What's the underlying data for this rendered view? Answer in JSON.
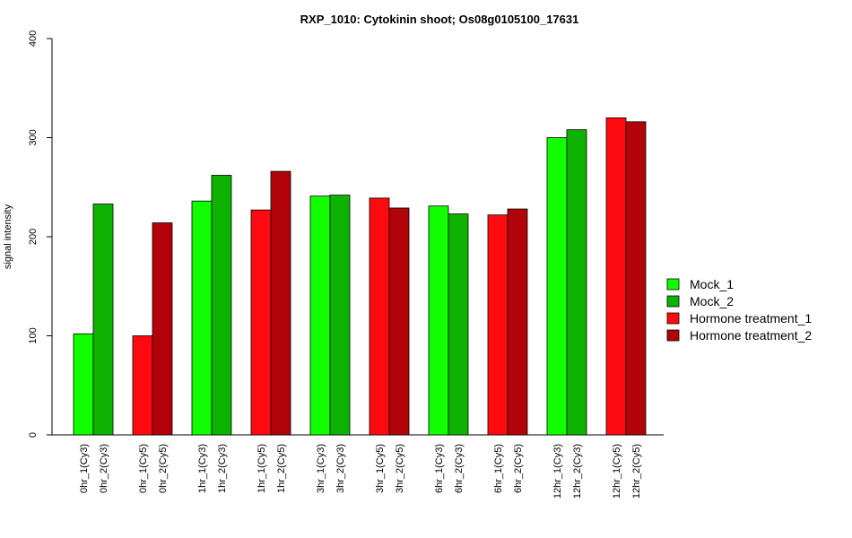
{
  "chart_data": {
    "type": "bar",
    "title": "RXP_1010: Cytokinin shoot; Os08g0105100_17631",
    "xlabel": "",
    "ylabel": "signal intensity",
    "ylim": [
      0,
      400
    ],
    "yticks": [
      0,
      100,
      200,
      300,
      400
    ],
    "grid": false,
    "legend_position": "right",
    "categories": [
      "0hr_1(Cy3)",
      "0hr_2(Cy3)",
      "0hr_1(Cy5)",
      "0hr_2(Cy5)",
      "1hr_1(Cy3)",
      "1hr_2(Cy3)",
      "1hr_1(Cy5)",
      "1hr_2(Cy5)",
      "3hr_1(Cy3)",
      "3hr_2(Cy3)",
      "3hr_1(Cy5)",
      "3hr_2(Cy5)",
      "6hr_1(Cy3)",
      "6hr_2(Cy3)",
      "6hr_1(Cy5)",
      "6hr_2(Cy5)",
      "12hr_1(Cy3)",
      "12hr_2(Cy3)",
      "12hr_1(Cy5)",
      "12hr_2(Cy5)"
    ],
    "values": [
      102,
      233,
      100,
      214,
      236,
      262,
      227,
      266,
      241,
      242,
      239,
      229,
      231,
      223,
      222,
      228,
      300,
      308,
      320,
      316
    ],
    "bar_series_index": [
      0,
      1,
      2,
      3,
      0,
      1,
      2,
      3,
      0,
      1,
      2,
      3,
      0,
      1,
      2,
      3,
      0,
      1,
      2,
      3
    ],
    "series": [
      {
        "name": "Mock_1",
        "color": "#11ff00"
      },
      {
        "name": "Mock_2",
        "color": "#0db300"
      },
      {
        "name": "Hormone treatment_1",
        "color": "#ff0a11"
      },
      {
        "name": "Hormone treatment_2",
        "color": "#b2030a"
      }
    ]
  }
}
